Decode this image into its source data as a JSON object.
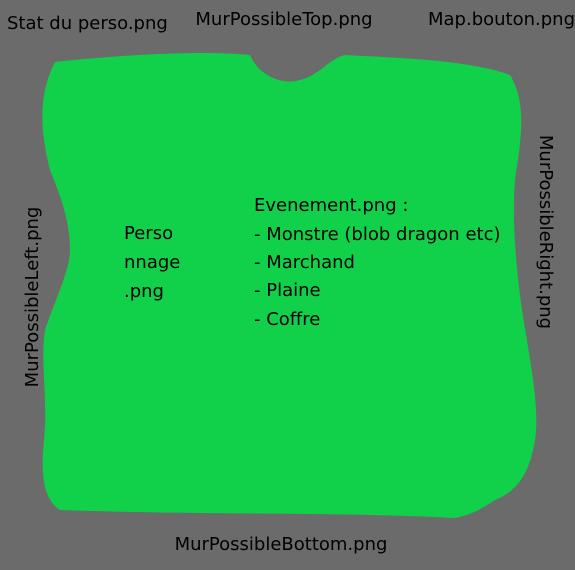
{
  "labels": {
    "top_left": "Stat du perso.png",
    "top": "MurPossibleTop.png",
    "top_right": "Map.bouton.png",
    "left": "MurPossibleLeft.png",
    "right": "MurPossibleRight.png",
    "bottom": "MurPossibleBottom.png"
  },
  "character": [
    "Perso",
    "nnage",
    ".png"
  ],
  "events": {
    "title": "Evenement.png :",
    "items": [
      "- Monstre (blob dragon etc)",
      "- Marchand",
      "- Plaine",
      "- Coffre"
    ]
  }
}
